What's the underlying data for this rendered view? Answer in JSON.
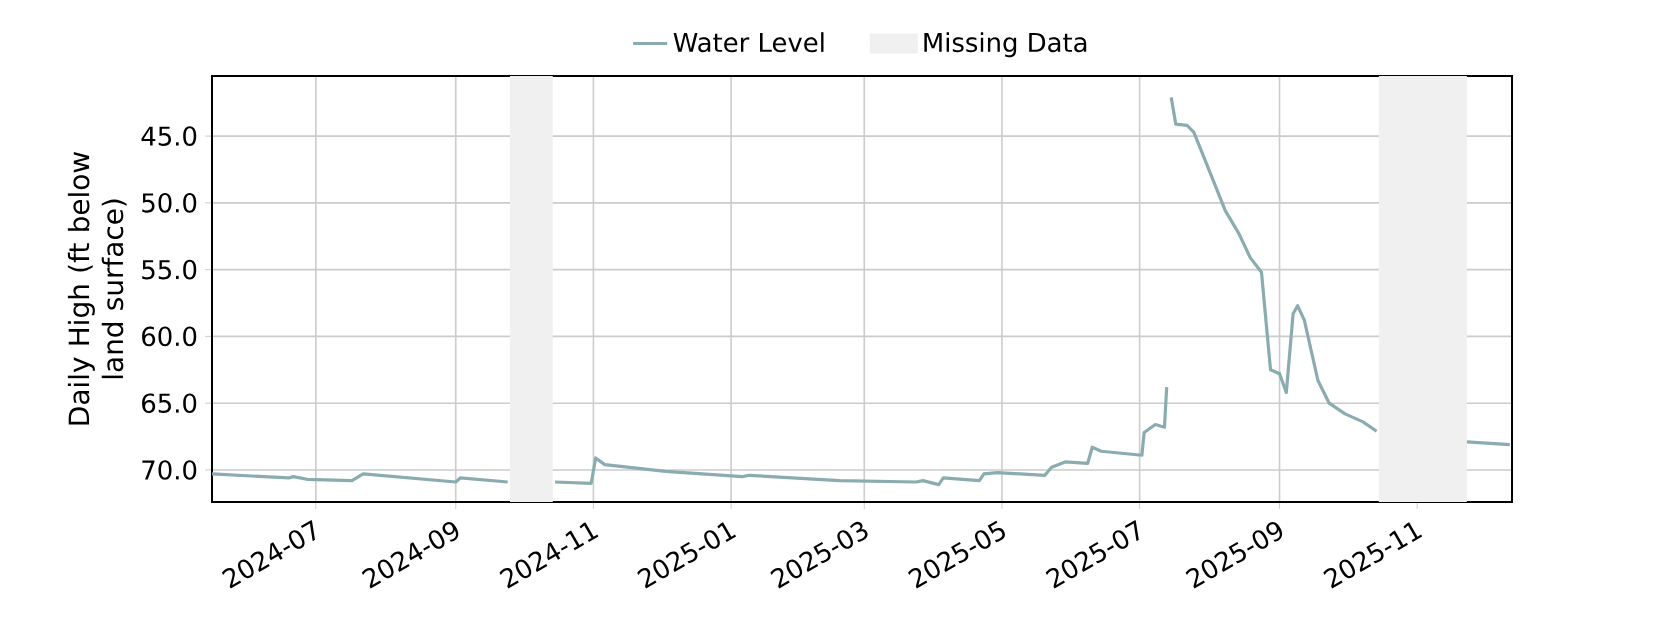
{
  "chart_data": {
    "type": "line",
    "ylabel": "Daily High (ft below land surface)",
    "x": [
      "2024-05-16",
      "2024-06-19",
      "2024-06-21",
      "2024-06-27",
      "2024-07-17",
      "2024-07-22",
      "2024-09-01",
      "2024-09-03",
      "2024-09-24",
      "2024-10-05",
      "2024-10-15",
      "2024-10-31",
      "2024-11-02",
      "2024-11-06",
      "2024-12-03",
      "2025-01-06",
      "2025-01-09",
      "2025-02-18",
      "2025-03-24",
      "2025-03-27",
      "2025-04-03",
      "2025-04-05",
      "2025-04-21",
      "2025-04-23",
      "2025-04-29",
      "2025-05-20",
      "2025-05-23",
      "2025-05-29",
      "2025-06-08",
      "2025-06-10",
      "2025-06-14",
      "2025-07-02",
      "2025-07-03",
      "2025-07-08",
      "2025-07-12",
      "2025-07-13",
      "2025-07-14",
      "2025-07-15",
      "2025-07-17",
      "2025-07-22",
      "2025-07-25",
      "2025-07-30",
      "2025-08-08",
      "2025-08-14",
      "2025-08-19",
      "2025-08-24",
      "2025-08-28",
      "2025-09-01",
      "2025-09-04",
      "2025-09-07",
      "2025-09-09",
      "2025-09-12",
      "2025-09-18",
      "2025-09-23",
      "2025-09-30",
      "2025-10-08",
      "2025-10-14",
      "2025-11-01",
      "2025-11-23",
      "2025-12-12"
    ],
    "series": [
      {
        "name": "Water Level",
        "color": "#8aacb0",
        "values": [
          70.3,
          70.6,
          70.5,
          70.7,
          70.8,
          70.3,
          70.9,
          70.6,
          70.9,
          null,
          70.9,
          71.0,
          69.1,
          69.6,
          70.1,
          70.5,
          70.4,
          70.8,
          70.9,
          70.8,
          71.1,
          70.6,
          70.8,
          70.3,
          70.2,
          70.4,
          69.8,
          69.4,
          69.5,
          68.3,
          68.6,
          68.9,
          67.2,
          66.6,
          66.8,
          63.8,
          null,
          42.1,
          44.1,
          44.2,
          44.7,
          46.8,
          50.6,
          52.3,
          54.1,
          55.2,
          62.5,
          62.8,
          64.2,
          58.3,
          57.7,
          58.8,
          63.3,
          65.0,
          65.8,
          66.4,
          67.1,
          null,
          67.9,
          68.1
        ]
      }
    ],
    "xlim": [
      "2024-05-16",
      "2025-12-13"
    ],
    "xticks": [
      "2024-07",
      "2024-09",
      "2024-11",
      "2025-01",
      "2025-03",
      "2025-05",
      "2025-07",
      "2025-09",
      "2025-11"
    ],
    "ylim": [
      72.4,
      40.5
    ],
    "yticks": [
      {
        "value": 45,
        "label": "45.0"
      },
      {
        "value": 50,
        "label": "50.0"
      },
      {
        "value": 55,
        "label": "55.0"
      },
      {
        "value": 60,
        "label": "60.0"
      },
      {
        "value": 65,
        "label": "65.0"
      },
      {
        "value": 70,
        "label": "70.0"
      }
    ],
    "bands": [
      {
        "axis": "x",
        "from": "2024-09-25",
        "to": "2024-10-14",
        "label": "Missing Data",
        "color": "#f0f0f0"
      },
      {
        "axis": "x",
        "from": "2025-10-15",
        "to": "2025-11-23",
        "color": "#f0f0f0"
      }
    ],
    "grid": true,
    "legend": "top",
    "marker": "none",
    "line_style": "solid"
  }
}
